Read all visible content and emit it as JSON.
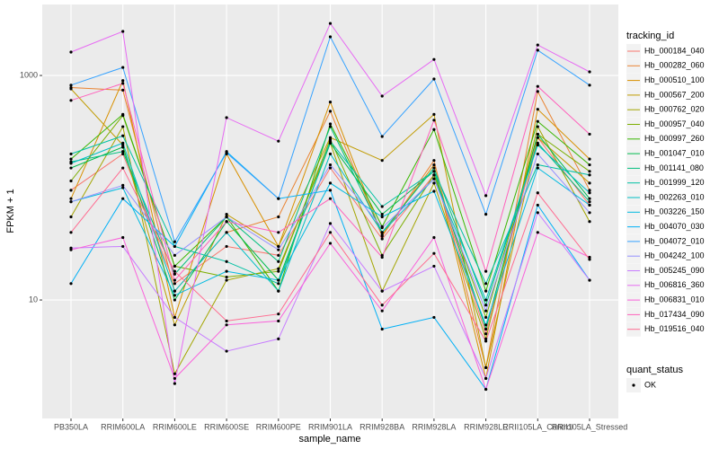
{
  "chart_data": {
    "type": "line",
    "y_scale": "log",
    "x_label": "sample_name",
    "y_label": "FPKM + 1",
    "legend_title": "tracking_id",
    "legend_position": "right",
    "point_legend_title": "quant_status",
    "point_legend_labels": [
      "OK"
    ],
    "point_color": "#000000",
    "grid": true,
    "categories": [
      "PB350LA",
      "RRIM600LA",
      "RRIM600LE",
      "RRIM600SE",
      "RRIM600PE",
      "RRIM901LA",
      "RRIM928BA",
      "RRIM928LA",
      "RRIM928LE",
      "RRII105LA_Control",
      "RRII105LA_Stressed"
    ],
    "ylim": [
      0.88,
      4290
    ],
    "yticks": [
      10,
      1000
    ],
    "series": [
      {
        "name": "Hb_000184_040",
        "color": "#F8766D",
        "values": [
          95,
          200,
          14,
          30,
          25,
          150,
          35,
          130,
          5,
          280,
          70
        ]
      },
      {
        "name": "Hb_000282_060",
        "color": "#EA8331",
        "values": [
          780,
          740,
          12,
          40,
          55,
          480,
          37,
          175,
          2.5,
          720,
          95
        ]
      },
      {
        "name": "Hb_000510_100",
        "color": "#D89000",
        "values": [
          80,
          900,
          7,
          200,
          30,
          580,
          38,
          160,
          2.0,
          500,
          180
        ]
      },
      {
        "name": "Hb_000567_200",
        "color": "#C09B00",
        "values": [
          760,
          240,
          6,
          58,
          30,
          280,
          175,
          450,
          2.5,
          280,
          110
        ]
      },
      {
        "name": "Hb_000762_020",
        "color": "#A3A500",
        "values": [
          55,
          350,
          2.2,
          15,
          19,
          250,
          12,
          110,
          4.5,
          350,
          50
        ]
      },
      {
        "name": "Hb_000957_040",
        "color": "#7CAE00",
        "values": [
          115,
          440,
          20,
          16,
          18,
          270,
          25,
          130,
          7,
          300,
          140
        ]
      },
      {
        "name": "Hb_000997_260",
        "color": "#39B600",
        "values": [
          180,
          450,
          20,
          55,
          12,
          370,
          45,
          330,
          12,
          390,
          160
        ]
      },
      {
        "name": "Hb_001047_010",
        "color": "#00BB4E",
        "values": [
          150,
          230,
          10,
          50,
          15,
          250,
          58,
          140,
          5.5,
          300,
          80
        ]
      },
      {
        "name": "Hb_001141_080",
        "color": "#00BF7D",
        "values": [
          170,
          210,
          17,
          55,
          22,
          350,
          40,
          150,
          9,
          250,
          75
        ]
      },
      {
        "name": "Hb_001999_120",
        "color": "#00C1A3",
        "values": [
          200,
          290,
          30,
          22,
          14,
          260,
          68,
          140,
          14,
          160,
          130
        ]
      },
      {
        "name": "Hb_002263_010",
        "color": "#00BFC4",
        "values": [
          165,
          250,
          12,
          40,
          12,
          200,
          40,
          120,
          10,
          240,
          90
        ]
      },
      {
        "name": "Hb_003226_150",
        "color": "#00BAE0",
        "values": [
          75,
          100,
          11,
          18,
          15,
          110,
          55,
          93,
          6,
          150,
          70
        ]
      },
      {
        "name": "Hb_004070_030",
        "color": "#00B0F6",
        "values": [
          14,
          80,
          30,
          210,
          80,
          95,
          5.5,
          7,
          1.6,
          70,
          15
        ]
      },
      {
        "name": "Hb_004072_010",
        "color": "#35A2FF",
        "values": [
          820,
          1180,
          33,
          205,
          80,
          2210,
          286,
          930,
          58,
          1680,
          820
        ]
      },
      {
        "name": "Hb_004242_100",
        "color": "#9590FF",
        "values": [
          75,
          105,
          25,
          55,
          28,
          160,
          44,
          120,
          8,
          200,
          60
        ]
      },
      {
        "name": "Hb_005245_090",
        "color": "#C77CFF",
        "values": [
          29,
          30,
          7,
          3.5,
          4.5,
          48,
          12,
          20,
          2,
          60,
          15
        ]
      },
      {
        "name": "Hb_006816_360",
        "color": "#E76BF3",
        "values": [
          1615,
          2470,
          1.8,
          421,
          260,
          2910,
          655,
          1390,
          85,
          1870,
          1077
        ]
      },
      {
        "name": "Hb_006831_010",
        "color": "#FA62DB",
        "values": [
          28,
          36,
          2.0,
          6,
          6.5,
          32,
          8,
          36,
          1.6,
          40,
          24
        ]
      },
      {
        "name": "Hb_017434_090",
        "color": "#FF62BC",
        "values": [
          600,
          850,
          15,
          50,
          40,
          80,
          24,
          400,
          18,
          800,
          300
        ]
      },
      {
        "name": "Hb_019516_040",
        "color": "#FF6C91",
        "values": [
          40,
          150,
          18,
          6.5,
          7.5,
          40,
          9,
          26,
          4.3,
          90,
          23
        ]
      }
    ]
  }
}
